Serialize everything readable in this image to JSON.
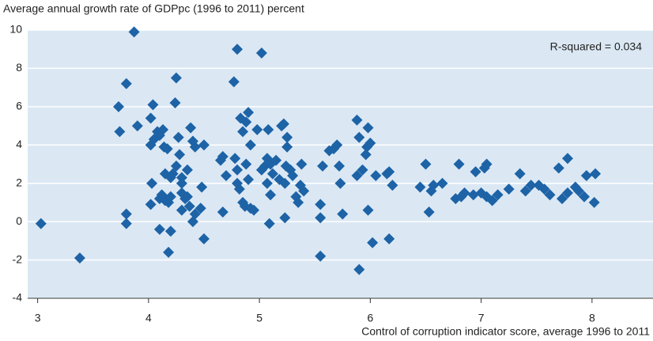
{
  "chart_data": {
    "type": "scatter",
    "title": "Average annual growth rate of GDPpc (1996 to 2011) percent",
    "x_label": "Control of corruption indicator score, average 1996 to 2011",
    "annotation": "R-squared = 0.034",
    "color": "#1d63a6",
    "xlim": [
      2.91,
      8.55
    ],
    "xticks": [
      3,
      4,
      5,
      6,
      7,
      8
    ],
    "ylim": [
      -4,
      10
    ],
    "yticks": [
      -4,
      -2,
      0,
      2,
      4,
      6,
      8,
      10
    ],
    "grid": true,
    "x": [
      3.03,
      3.38,
      3.73,
      3.74,
      3.8,
      3.8,
      3.8,
      3.87,
      3.9,
      4.02,
      4.04,
      4.02,
      4.05,
      4.03,
      4.02,
      4.08,
      4.1,
      4.13,
      4.14,
      4.17,
      4.1,
      4.12,
      4.15,
      4.2,
      4.22,
      4.18,
      4.15,
      4.2,
      4.1,
      4.2,
      4.18,
      4.25,
      4.24,
      4.27,
      4.28,
      4.3,
      4.3,
      4.35,
      4.33,
      4.3,
      4.37,
      4.35,
      4.38,
      4.4,
      4.42,
      4.4,
      4.42,
      4.47,
      4.48,
      4.5,
      4.5,
      4.3,
      4.25,
      4.65,
      4.67,
      4.7,
      4.67,
      4.77,
      4.8,
      4.78,
      4.8,
      4.82,
      4.8,
      4.83,
      4.85,
      4.88,
      4.9,
      4.88,
      4.9,
      4.92,
      4.85,
      4.87,
      4.92,
      4.95,
      4.98,
      5.02,
      5.02,
      5.05,
      5.07,
      5.08,
      5.1,
      5.07,
      5.1,
      5.09,
      5.12,
      5.15,
      5.18,
      5.2,
      5.22,
      5.25,
      5.25,
      5.24,
      5.23,
      5.23,
      5.28,
      5.3,
      5.33,
      5.35,
      5.38,
      5.37,
      5.4,
      5.55,
      5.55,
      5.55,
      5.57,
      5.63,
      5.67,
      5.7,
      5.72,
      5.73,
      5.75,
      5.88,
      5.9,
      5.88,
      5.9,
      5.93,
      5.96,
      5.97,
      5.98,
      6.0,
      5.98,
      6.02,
      6.05,
      6.15,
      6.17,
      6.2,
      6.17,
      6.45,
      6.5,
      6.55,
      6.57,
      6.53,
      6.65,
      6.77,
      6.8,
      6.82,
      6.85,
      6.93,
      6.95,
      7.0,
      7.05,
      7.03,
      7.05,
      7.1,
      7.15,
      7.25,
      7.35,
      7.4,
      7.45,
      7.52,
      7.57,
      7.62,
      7.7,
      7.73,
      7.78,
      7.78,
      7.85,
      7.88,
      7.93,
      7.95,
      8.03,
      8.02
    ],
    "values": [
      -0.1,
      -1.9,
      6.0,
      4.7,
      7.2,
      0.4,
      -0.1,
      9.9,
      5.0,
      5.4,
      6.1,
      4.0,
      4.3,
      2.0,
      0.9,
      4.7,
      4.5,
      4.8,
      3.9,
      3.8,
      1.2,
      1.4,
      2.5,
      2.3,
      2.5,
      1.0,
      1.1,
      1.3,
      -0.4,
      -0.5,
      -1.6,
      7.5,
      6.2,
      4.4,
      3.5,
      2.0,
      1.5,
      1.3,
      1.2,
      0.6,
      0.8,
      2.7,
      4.9,
      4.2,
      3.9,
      0.0,
      0.4,
      0.7,
      1.8,
      4.0,
      -0.9,
      2.3,
      2.9,
      3.2,
      3.4,
      2.4,
      0.5,
      7.3,
      9.0,
      3.3,
      2.0,
      1.7,
      2.7,
      5.4,
      4.7,
      5.2,
      5.7,
      3.0,
      2.2,
      4.0,
      1.0,
      0.8,
      0.7,
      0.6,
      4.8,
      8.8,
      2.7,
      2.9,
      3.3,
      4.8,
      3.0,
      2.0,
      1.4,
      -0.1,
      2.5,
      3.2,
      2.2,
      5.0,
      5.1,
      4.4,
      3.9,
      2.9,
      2.0,
      0.2,
      2.7,
      2.4,
      1.3,
      1.0,
      3.0,
      1.9,
      1.6,
      0.9,
      0.2,
      -1.8,
      2.9,
      3.7,
      3.8,
      4.0,
      2.9,
      2.0,
      0.4,
      5.3,
      4.4,
      2.4,
      -2.5,
      2.7,
      3.5,
      3.9,
      4.9,
      4.1,
      0.6,
      -1.1,
      2.4,
      2.5,
      2.6,
      1.9,
      -0.9,
      1.8,
      3.0,
      1.6,
      1.9,
      0.5,
      2.0,
      1.2,
      3.0,
      1.3,
      1.5,
      1.4,
      2.6,
      1.5,
      3.0,
      2.8,
      1.3,
      1.1,
      1.4,
      1.7,
      2.5,
      1.6,
      1.9,
      1.9,
      1.7,
      1.4,
      2.8,
      1.2,
      1.5,
      3.3,
      1.8,
      1.6,
      1.3,
      2.4,
      2.5,
      1.0
    ]
  }
}
